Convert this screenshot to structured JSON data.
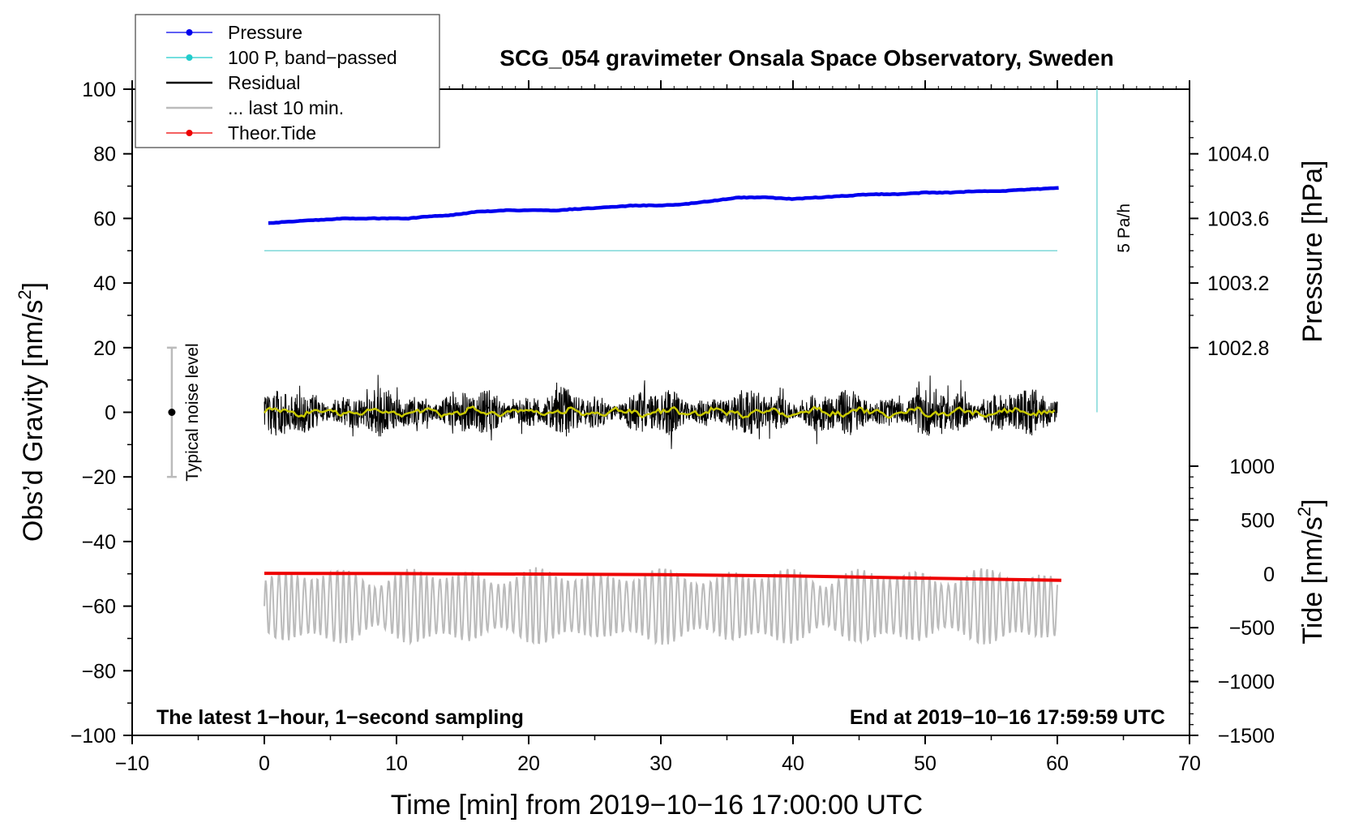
{
  "chart_data": {
    "type": "line",
    "title": "SCG_054 gravimeter Onsala Space Observatory, Sweden",
    "xlabel": "Time [min] from 2019−10−16 17:00:00 UTC",
    "ylabel_left": "Obs’d Gravity [nm/s²]",
    "ylabel_left_parts": {
      "base": "Obs’d Gravity [nm/s",
      "sup": "2",
      "end": "]"
    },
    "ylabel_right_pressure": "Pressure [hPa]",
    "ylabel_right_tide": "Tide [nm/s²]",
    "ylabel_right_tide_parts": {
      "base": "Tide [nm/s",
      "sup": "2",
      "end": "]"
    },
    "xlim": [
      -10,
      70
    ],
    "ylim_left": [
      -100,
      100
    ],
    "xticks": [
      -10,
      0,
      10,
      20,
      30,
      40,
      50,
      60,
      70
    ],
    "xtick_labels": [
      "−10",
      "0",
      "10",
      "20",
      "30",
      "40",
      "50",
      "60",
      "70"
    ],
    "yticks_left": [
      -100,
      -80,
      -60,
      -40,
      -20,
      0,
      20,
      40,
      60,
      80,
      100
    ],
    "ytick_labels_left": [
      "−100",
      "−80",
      "−60",
      "−40",
      "−20",
      "0",
      "20",
      "40",
      "60",
      "80",
      "100"
    ],
    "pressure_axis": {
      "ticks": [
        1002.8,
        1003.2,
        1003.6,
        1004.0
      ],
      "labels": [
        "1002.8",
        "1003.2",
        "1003.6",
        "1004.0"
      ],
      "map_gravity_at_1003_6": 60,
      "gravity_per_hpa": 50
    },
    "tide_axis": {
      "ticks": [
        -1500,
        -1000,
        -500,
        0,
        500,
        1000
      ],
      "labels": [
        "−1500",
        "−1000",
        "−500",
        "0",
        "500",
        "1000"
      ],
      "map_gravity_at_0": -50,
      "gravity_per_unit": 0.03333
    },
    "series": [
      {
        "name": "Pressure",
        "color": "#0000ee",
        "axis": "pressure",
        "x": [
          0.3,
          2,
          4,
          6,
          8,
          10,
          11,
          12,
          14,
          16,
          18,
          20,
          22,
          24,
          26,
          28,
          30,
          32,
          34,
          36,
          38,
          40,
          42,
          44,
          46,
          48,
          50,
          52,
          54,
          56,
          58,
          60.3
        ],
        "values": [
          1003.57,
          1003.58,
          1003.59,
          1003.6,
          1003.6,
          1003.6,
          1003.6,
          1003.61,
          1003.62,
          1003.64,
          1003.65,
          1003.65,
          1003.65,
          1003.66,
          1003.67,
          1003.68,
          1003.68,
          1003.69,
          1003.71,
          1003.73,
          1003.73,
          1003.72,
          1003.73,
          1003.74,
          1003.75,
          1003.75,
          1003.76,
          1003.76,
          1003.77,
          1003.77,
          1003.78,
          1003.79
        ]
      },
      {
        "name": "100 P, band−passed",
        "color": "#7fd8d8",
        "axis": "gravity",
        "x": [
          0,
          60
        ],
        "values": [
          50,
          50
        ]
      },
      {
        "name": "Residual",
        "color": "#000000",
        "axis": "gravity",
        "x": [
          0,
          60
        ],
        "values": [
          0,
          0
        ],
        "noise_amplitude": 9
      },
      {
        "name": "... last 10 min.",
        "color": "#bbbbbb",
        "axis": "gravity",
        "x": [
          0,
          60
        ],
        "values": [
          -60,
          -60
        ],
        "noise_amplitude": 9
      },
      {
        "name": "Theor.Tide",
        "color": "#ee0000",
        "axis": "tide",
        "x": [
          0,
          10,
          20,
          30,
          40,
          50,
          60.3
        ],
        "values": [
          5,
          3,
          -2,
          -8,
          -20,
          -40,
          -60
        ]
      }
    ],
    "smoothed_residual": {
      "color": "#c8c800",
      "values": [
        0,
        0
      ]
    },
    "typical_noise": {
      "x": -7,
      "range": [
        -20,
        20
      ],
      "center": 0,
      "label": "Typical noise level"
    },
    "rate_scale": {
      "x": 63,
      "range": [
        0,
        100
      ],
      "label": "5 Pa/h"
    },
    "legend": {
      "placement": "top-left",
      "entries": [
        {
          "label": "Pressure",
          "color": "#0000ee",
          "marker": true
        },
        {
          "label": "100 P, band−passed",
          "color": "#22cccc",
          "marker": true
        },
        {
          "label": "Residual",
          "color": "#000000",
          "marker": false
        },
        {
          "label": "... last 10 min.",
          "color": "#bbbbbb",
          "marker": false
        },
        {
          "label": "Theor.Tide",
          "color": "#ee0000",
          "marker": true
        }
      ]
    },
    "annotations": {
      "bottom_left": "The latest 1−hour, 1−second sampling",
      "bottom_right": "End at 2019−10−16 17:59:59 UTC"
    }
  }
}
